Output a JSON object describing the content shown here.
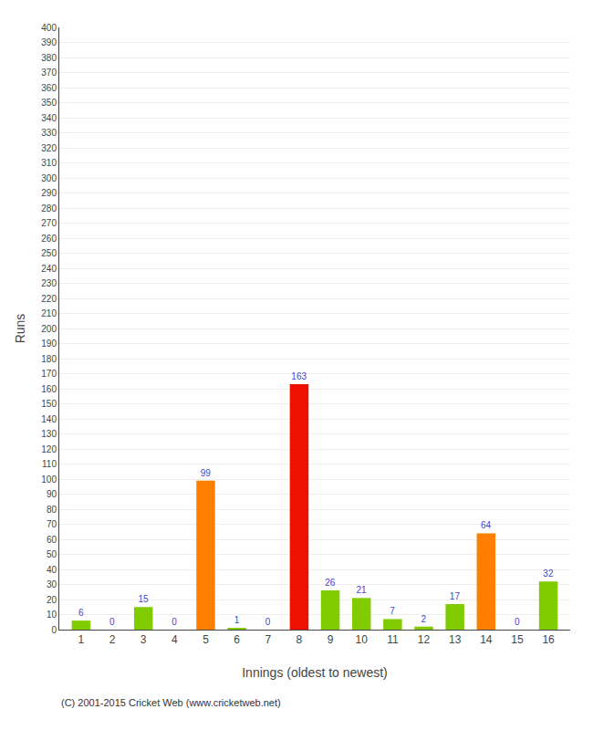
{
  "chart_data": {
    "type": "bar",
    "xlabel": "Innings (oldest to newest)",
    "ylabel": "Runs",
    "x": [
      1,
      2,
      3,
      4,
      5,
      6,
      7,
      8,
      9,
      10,
      11,
      12,
      13,
      14,
      15,
      16
    ],
    "values": [
      6,
      0,
      15,
      0,
      99,
      1,
      0,
      163,
      26,
      21,
      7,
      2,
      17,
      64,
      0,
      32
    ],
    "colors": [
      "#80cc00",
      "#80cc00",
      "#80cc00",
      "#80cc00",
      "#ff8000",
      "#80cc00",
      "#80cc00",
      "#ee1100",
      "#80cc00",
      "#80cc00",
      "#80cc00",
      "#80cc00",
      "#80cc00",
      "#ff8000",
      "#80cc00",
      "#80cc00"
    ],
    "xlim": [
      0.3,
      16.7
    ],
    "xticks": [
      1,
      2,
      3,
      4,
      5,
      6,
      7,
      8,
      9,
      10,
      11,
      12,
      13,
      14,
      15,
      16
    ],
    "ylim": [
      0,
      400
    ],
    "yticks": [
      0,
      10,
      20,
      30,
      40,
      50,
      60,
      70,
      80,
      90,
      100,
      110,
      120,
      130,
      140,
      150,
      160,
      170,
      180,
      190,
      200,
      210,
      220,
      230,
      240,
      250,
      260,
      270,
      280,
      290,
      300,
      310,
      320,
      330,
      340,
      350,
      360,
      370,
      380,
      390,
      400
    ],
    "grid": true,
    "data_labels": true,
    "annotations": [
      "(C) 2001-2015 Cricket Web (www.cricketweb.net)"
    ]
  }
}
